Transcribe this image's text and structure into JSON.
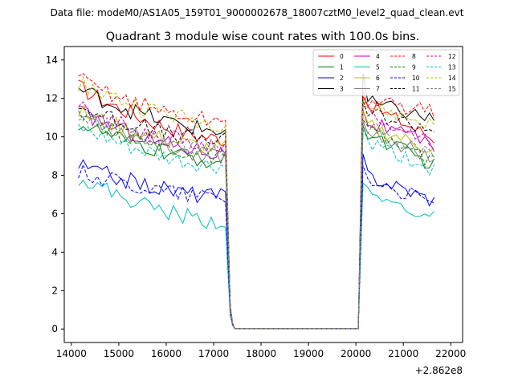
{
  "chart_data": {
    "type": "line",
    "suptitle": "Data file: modeM0/AS1A05_159T01_9000002678_18007cztM0_level2_quad_clean.evt",
    "title": "Quadrant 3 module wise count rates with 100.0s bins.",
    "xlabel": "",
    "ylabel": "",
    "offset_label": "+2.862e8",
    "xlim": [
      13850,
      22250
    ],
    "ylim": [
      -0.7,
      14.7
    ],
    "xticks": [
      14000,
      15000,
      16000,
      17000,
      18000,
      19000,
      20000,
      21000,
      22000
    ],
    "xtick_labels": [
      "14000",
      "15000",
      "16000",
      "17000",
      "18000",
      "19000",
      "20000",
      "21000",
      "22000"
    ],
    "yticks": [
      0,
      2,
      4,
      6,
      8,
      10,
      12,
      14
    ],
    "ytick_labels": [
      "0",
      "2",
      "4",
      "6",
      "8",
      "10",
      "12",
      "14"
    ],
    "legend_position": "upper-right",
    "time_grid": {
      "first_start": 14150,
      "first_end": 17250,
      "drop": [
        17350,
        17400
      ],
      "gap_start": 17450,
      "gap_end": 20050,
      "rise": [
        20150
      ],
      "second_start": 20250,
      "second_end": 21650,
      "step": 100
    },
    "series": [
      {
        "name": "0",
        "color": "#ff0000",
        "dash": "solid",
        "first_start": 12.6,
        "first_end": 9.9,
        "second_start": 11.7,
        "second_end": 9.9,
        "drop": [
          1.2,
          0.3
        ],
        "rise": [
          12.1
        ]
      },
      {
        "name": "1",
        "color": "#008000",
        "dash": "solid",
        "first_start": 10.7,
        "first_end": 8.7,
        "second_start": 10.2,
        "second_end": 8.5,
        "drop": [
          1.0,
          0.2
        ],
        "rise": [
          10.6
        ]
      },
      {
        "name": "2",
        "color": "#0000ff",
        "dash": "solid",
        "first_start": 8.5,
        "first_end": 6.9,
        "second_start": 8.0,
        "second_end": 6.7,
        "drop": [
          0.8,
          0.2
        ],
        "rise": [
          9.1
        ]
      },
      {
        "name": "3",
        "color": "#000000",
        "dash": "solid",
        "first_start": 12.5,
        "first_end": 10.3,
        "second_start": 11.8,
        "second_end": 10.9,
        "drop": [
          1.2,
          0.3
        ],
        "rise": [
          13.3
        ]
      },
      {
        "name": "4",
        "color": "#c000c0",
        "dash": "solid",
        "first_start": 11.3,
        "first_end": 9.2,
        "second_start": 10.8,
        "second_end": 9.5,
        "drop": [
          1.1,
          0.3
        ],
        "rise": [
          11.4
        ]
      },
      {
        "name": "5",
        "color": "#00bfbf",
        "dash": "solid",
        "first_start": 7.9,
        "first_end": 5.6,
        "second_start": 7.0,
        "second_end": 5.8,
        "drop": [
          0.7,
          0.2
        ],
        "rise": [
          7.6
        ]
      },
      {
        "name": "6",
        "color": "#bfbf00",
        "dash": "solid",
        "first_start": 11.3,
        "first_end": 9.4,
        "second_start": 10.6,
        "second_end": 9.3,
        "drop": [
          1.1,
          0.3
        ],
        "rise": [
          11.4
        ]
      },
      {
        "name": "7",
        "color": "#808080",
        "dash": "solid",
        "first_start": 11.2,
        "first_end": 9.0,
        "second_start": 10.3,
        "second_end": 8.9,
        "drop": [
          1.0,
          0.2
        ],
        "rise": [
          10.8
        ]
      },
      {
        "name": "8",
        "color": "#ff0000",
        "dash": "dashed",
        "first_start": 13.0,
        "first_end": 10.8,
        "second_start": 11.9,
        "second_end": 11.3,
        "drop": [
          1.2,
          0.3
        ],
        "rise": [
          12.4
        ]
      },
      {
        "name": "9",
        "color": "#008000",
        "dash": "dashed",
        "first_start": 11.0,
        "first_end": 9.0,
        "second_start": 10.3,
        "second_end": 8.7,
        "drop": [
          1.0,
          0.2
        ],
        "rise": [
          10.9
        ]
      },
      {
        "name": "10",
        "color": "#0000ff",
        "dash": "dashed",
        "first_start": 8.2,
        "first_end": 6.9,
        "second_start": 7.8,
        "second_end": 6.5,
        "drop": [
          0.8,
          0.2
        ],
        "rise": [
          8.5
        ]
      },
      {
        "name": "11",
        "color": "#000000",
        "dash": "dashed",
        "first_start": 11.6,
        "first_end": 9.8,
        "second_start": 11.3,
        "second_end": 10.4,
        "drop": [
          1.1,
          0.3
        ],
        "rise": [
          11.9
        ]
      },
      {
        "name": "12",
        "color": "#c000c0",
        "dash": "dashed",
        "first_start": 11.5,
        "first_end": 9.5,
        "second_start": 11.2,
        "second_end": 9.7,
        "drop": [
          1.1,
          0.3
        ],
        "rise": [
          11.6
        ]
      },
      {
        "name": "13",
        "color": "#00bfbf",
        "dash": "dashed",
        "first_start": 10.4,
        "first_end": 8.4,
        "second_start": 9.7,
        "second_end": 8.3,
        "drop": [
          1.0,
          0.2
        ],
        "rise": [
          10.4
        ]
      },
      {
        "name": "14",
        "color": "#bfbf00",
        "dash": "dashed",
        "first_start": 12.8,
        "first_end": 10.7,
        "second_start": 11.6,
        "second_end": 10.6,
        "drop": [
          1.2,
          0.3
        ],
        "rise": [
          12.0
        ]
      },
      {
        "name": "15",
        "color": "#808080",
        "dash": "dashed",
        "first_start": 11.1,
        "first_end": 9.2,
        "second_start": 10.5,
        "second_end": 9.1,
        "drop": [
          1.0,
          0.2
        ],
        "rise": [
          10.8
        ]
      }
    ]
  }
}
